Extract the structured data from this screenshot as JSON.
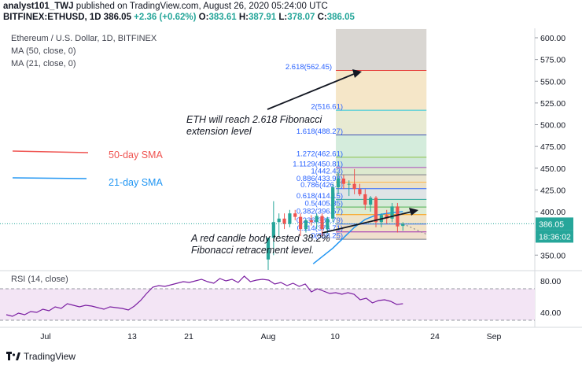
{
  "header": {
    "user": "analyst101_TWJ",
    "published_text": " published on TradingView.com, August 26, 2020 05:24:00 UTC",
    "symbol_line": "BITFINEX:ETHUSD, 1D 386.05",
    "change": "+2.36 (+0.62%)",
    "o_label": "O:",
    "o_value": "383.61",
    "h_label": "H:",
    "h_value": "387.91",
    "l_label": "L:",
    "l_value": "378.07",
    "c_label": "C:",
    "c_value": "386.05"
  },
  "legend": {
    "title": "Ethereum / U.S. Dollar, 1D, BITFINEX",
    "ma50": "MA (50, close, 0)",
    "ma21": "MA (21, close, 0)"
  },
  "footer": {
    "brand": "TradingView"
  },
  "colors": {
    "up": "#26a69a",
    "down": "#ef5350",
    "ma50": "#ef5350",
    "ma21": "#2196f3",
    "rsi": "#7b1fa2",
    "fib_label": "#2962ff",
    "price_tag": "#26a69a"
  },
  "chart_data": {
    "type": "candlestick",
    "y_axis": {
      "ticks": [
        600,
        575,
        550,
        525,
        500,
        475,
        450,
        425,
        400,
        350
      ],
      "tick_labels": [
        "600.00",
        "575.00",
        "550.00",
        "525.00",
        "500.00",
        "475.00",
        "450.00",
        "425.00",
        "400.00",
        "350.00"
      ],
      "range": [
        320,
        610
      ],
      "price_tag": "386.05",
      "countdown_tag": "18:36:02"
    },
    "x_axis": {
      "labels": [
        "Jul",
        "13",
        "21",
        "Aug",
        "10",
        "24",
        "Sep"
      ]
    },
    "candles_visible_note": "",
    "candles": [
      {
        "date": "2020-08-01",
        "o": 345,
        "h": 370,
        "l": 330,
        "c": 370
      },
      {
        "date": "2020-08-02",
        "o": 370,
        "h": 412,
        "l": 350,
        "c": 388
      },
      {
        "date": "2020-08-03",
        "o": 388,
        "h": 398,
        "l": 372,
        "c": 392
      },
      {
        "date": "2020-08-04",
        "o": 392,
        "h": 398,
        "l": 380,
        "c": 386
      },
      {
        "date": "2020-08-05",
        "o": 386,
        "h": 402,
        "l": 382,
        "c": 398
      },
      {
        "date": "2020-08-06",
        "o": 398,
        "h": 402,
        "l": 390,
        "c": 394
      },
      {
        "date": "2020-08-07",
        "o": 394,
        "h": 398,
        "l": 372,
        "c": 380
      },
      {
        "date": "2020-08-08",
        "o": 380,
        "h": 392,
        "l": 376,
        "c": 390
      },
      {
        "date": "2020-08-09",
        "o": 390,
        "h": 396,
        "l": 384,
        "c": 388
      },
      {
        "date": "2020-08-10",
        "o": 388,
        "h": 398,
        "l": 380,
        "c": 395
      },
      {
        "date": "2020-08-11",
        "o": 395,
        "h": 398,
        "l": 372,
        "c": 380
      },
      {
        "date": "2020-08-12",
        "o": 380,
        "h": 394,
        "l": 375,
        "c": 392
      },
      {
        "date": "2020-08-13",
        "o": 392,
        "h": 432,
        "l": 388,
        "c": 428
      },
      {
        "date": "2020-08-14",
        "o": 428,
        "h": 445,
        "l": 420,
        "c": 438
      },
      {
        "date": "2020-08-15",
        "o": 438,
        "h": 442,
        "l": 426,
        "c": 432
      },
      {
        "date": "2020-08-16",
        "o": 432,
        "h": 436,
        "l": 418,
        "c": 432
      },
      {
        "date": "2020-08-17",
        "o": 432,
        "h": 449,
        "l": 420,
        "c": 426
      },
      {
        "date": "2020-08-18",
        "o": 426,
        "h": 432,
        "l": 418,
        "c": 420
      },
      {
        "date": "2020-08-19",
        "o": 420,
        "h": 426,
        "l": 402,
        "c": 408
      },
      {
        "date": "2020-08-20",
        "o": 408,
        "h": 418,
        "l": 400,
        "c": 416
      },
      {
        "date": "2020-08-21",
        "o": 416,
        "h": 418,
        "l": 382,
        "c": 388
      },
      {
        "date": "2020-08-22",
        "o": 388,
        "h": 398,
        "l": 382,
        "c": 396
      },
      {
        "date": "2020-08-23",
        "o": 396,
        "h": 402,
        "l": 386,
        "c": 392
      },
      {
        "date": "2020-08-24",
        "o": 392,
        "h": 410,
        "l": 388,
        "c": 406
      },
      {
        "date": "2020-08-25",
        "o": 406,
        "h": 410,
        "l": 376,
        "c": 383
      },
      {
        "date": "2020-08-26",
        "o": 383.61,
        "h": 387.91,
        "l": 378.07,
        "c": 386.05
      }
    ],
    "ma21": [
      {
        "date": "2020-08-13",
        "v": 358
      },
      {
        "date": "2020-08-15",
        "v": 370
      },
      {
        "date": "2020-08-17",
        "v": 382
      },
      {
        "date": "2020-08-19",
        "v": 391
      },
      {
        "date": "2020-08-21",
        "v": 396
      },
      {
        "date": "2020-08-23",
        "v": 398
      },
      {
        "date": "2020-08-26",
        "v": 400
      }
    ],
    "fibonacci": [
      {
        "label": "2.618(562.45)",
        "level": 562.45,
        "color": "#e53935",
        "fill": "#f5e6c8"
      },
      {
        "label": "2(516.61)",
        "level": 516.61,
        "color": "#26c6da",
        "fill": "#e8ead2"
      },
      {
        "label": "1.618(488.27)",
        "level": 488.27,
        "color": "#3f51b5",
        "fill": "#d4ecdc"
      },
      {
        "label": "1.272(462.61)",
        "level": 462.61,
        "color": "#8bc34a",
        "fill": "#cfe8d8"
      },
      {
        "label": "1.1129(450.81)",
        "level": 450.81,
        "color": "#ab47bc",
        "fill": "#dde9cf"
      },
      {
        "label": "1(442.43)",
        "level": 442.43,
        "color": "#787b86",
        "fill": "#e9e4cf"
      },
      {
        "label": "0.886(433.98)",
        "level": 433.98,
        "color": "#ffb74d",
        "fill": "#eae0c6"
      },
      {
        "label": "0.786(426.5)",
        "level": 426.5,
        "color": "#2962ff",
        "fill": "#dfe4e6"
      },
      {
        "label": "0.618(414.15)",
        "level": 414.15,
        "color": "#26a69a",
        "fill": "#d6ead8"
      },
      {
        "label": "0.5(405.35)",
        "level": 405.35,
        "color": "#4caf50",
        "fill": "#dcebd3"
      },
      {
        "label": "0.382(396.57)",
        "level": 396.57,
        "color": "#ff9800",
        "fill": "#efe3c8"
      },
      {
        "label": "0.236(385.79)",
        "level": 385.79,
        "color": "#2962ff",
        "fill": "#f1e2c6"
      },
      {
        "label": "0.114(376.71)",
        "level": 376.71,
        "color": "#9c27b0",
        "fill": "#f0dfcd"
      },
      {
        "label": "0(368.25)",
        "level": 368.25,
        "color": "#787b86",
        "fill": "#ece0d6"
      }
    ],
    "fib_extra_fill_top": 610,
    "annotations": [
      {
        "text": "ETH will reach 2.618 Fibonacci",
        "text2": "extension level"
      },
      {
        "text": "A red candle body tested 38.2%",
        "text2": "Fibonacci retracement level."
      }
    ],
    "ma_legend": [
      {
        "label": "50-day SMA",
        "color": "#ef5350"
      },
      {
        "label": "21-day SMA",
        "color": "#2196f3"
      }
    ],
    "rsi": {
      "label": "RSI (14, close)",
      "ticks": [
        80,
        40
      ],
      "tick_labels": [
        "80.00",
        "40.00"
      ],
      "band": [
        30,
        70
      ],
      "values": [
        37,
        35,
        39,
        37,
        41,
        40,
        44,
        42,
        47,
        45,
        51,
        49,
        47,
        49,
        48,
        46,
        44,
        47,
        46,
        45,
        43,
        48,
        55,
        64,
        72,
        74,
        73,
        75,
        77,
        79,
        78,
        80,
        82,
        79,
        77,
        83,
        80,
        82,
        78,
        86,
        79,
        81,
        82,
        81,
        76,
        78,
        74,
        77,
        73,
        76,
        66,
        70,
        67,
        64,
        65,
        63,
        65,
        63,
        56,
        58,
        52,
        55,
        56,
        54,
        50,
        51
      ]
    }
  }
}
